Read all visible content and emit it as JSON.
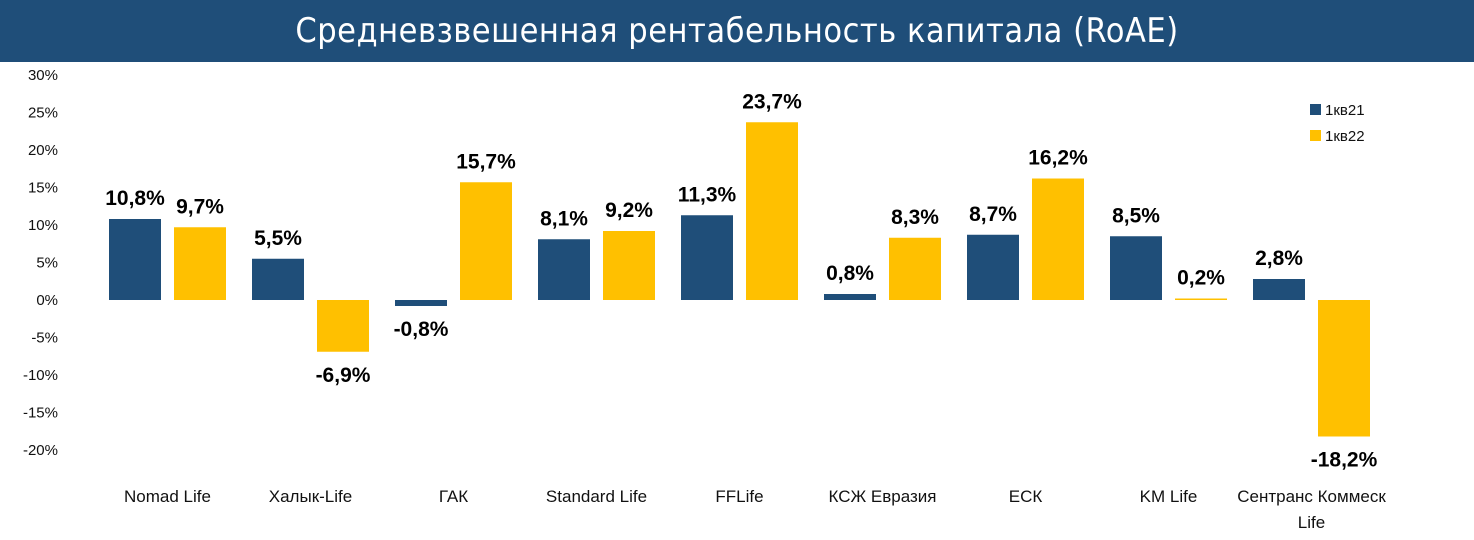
{
  "title": "Средневзвешенная рентабельность капитала (RoAE)",
  "colors": {
    "banner": "#1f4e79",
    "series1": "#1f4e79",
    "series2": "#ffc000"
  },
  "chart_data": {
    "type": "bar",
    "title": "Средневзвешенная рентабельность капитала (RoAE)",
    "xlabel": "",
    "ylabel": "",
    "ylim": [
      -20,
      30
    ],
    "yticks": [
      30,
      25,
      20,
      15,
      10,
      5,
      0,
      -5,
      -10,
      -15,
      -20
    ],
    "ytick_labels": [
      "30%",
      "25%",
      "20%",
      "15%",
      "10%",
      "5%",
      "0%",
      "-5%",
      "-10%",
      "-15%",
      "-20%"
    ],
    "grid": false,
    "legend_position": "top-right",
    "categories": [
      [
        "Nomad Life"
      ],
      [
        "Халык-Life"
      ],
      [
        "ГАК"
      ],
      [
        "Standard Life"
      ],
      [
        "FFLife"
      ],
      [
        "КСЖ Евразия"
      ],
      [
        "ЕСК"
      ],
      [
        "KM Life"
      ],
      [
        "Сентранс Коммеск",
        "Life"
      ]
    ],
    "series": [
      {
        "name": "1кв21",
        "color": "#1f4e79",
        "values": [
          10.8,
          5.5,
          -0.8,
          8.1,
          11.3,
          0.8,
          8.7,
          8.5,
          2.8
        ],
        "labels": [
          "10,8%",
          "5,5%",
          "-0,8%",
          "8,1%",
          "11,3%",
          "0,8%",
          "8,7%",
          "8,5%",
          "2,8%"
        ]
      },
      {
        "name": "1кв22",
        "color": "#ffc000",
        "values": [
          9.7,
          -6.9,
          15.7,
          9.2,
          23.7,
          8.3,
          16.2,
          0.2,
          -18.2
        ],
        "labels": [
          "9,7%",
          "-6,9%",
          "15,7%",
          "9,2%",
          "23,7%",
          "8,3%",
          "16,2%",
          "0,2%",
          "-18,2%"
        ]
      }
    ]
  }
}
